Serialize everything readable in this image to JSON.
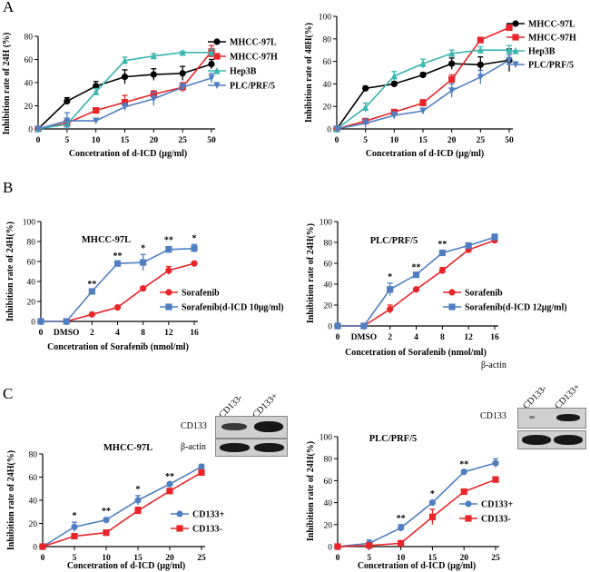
{
  "panels": {
    "A": "A",
    "B": "B",
    "C": "C"
  },
  "chart_data": [
    {
      "id": "A1",
      "type": "line",
      "title": "",
      "xlabel": "Concetration of d-ICD (μg/ml)",
      "ylabel": "Inhibition rate of 24H (%)",
      "categories": [
        "0",
        "5",
        "10",
        "15",
        "20",
        "25",
        "50"
      ],
      "ylim": [
        0,
        80
      ],
      "yticks": [
        0,
        20,
        40,
        60,
        80
      ],
      "series": [
        {
          "name": "MHCC-97L",
          "color": "#000000",
          "marker": "circle",
          "values": [
            0,
            24,
            37,
            45,
            47,
            48,
            56
          ],
          "err": [
            0,
            3,
            4,
            6,
            5,
            6,
            4
          ]
        },
        {
          "name": "MHCC-97H",
          "color": "#e8262a",
          "marker": "square",
          "values": [
            0,
            5,
            16,
            23,
            30,
            36,
            67
          ],
          "err": [
            0,
            3,
            2,
            6,
            3,
            4,
            5
          ]
        },
        {
          "name": "Hep3B",
          "color": "#3ab5b0",
          "marker": "triangle",
          "values": [
            0,
            4,
            32,
            59,
            63,
            66,
            66
          ],
          "err": [
            0,
            2,
            3,
            3,
            2,
            1,
            3
          ]
        },
        {
          "name": "PLC/PRF/5",
          "color": "#4f7fc1",
          "marker": "triangle-down",
          "values": [
            0,
            7,
            7,
            19,
            26,
            36,
            44
          ],
          "err": [
            0,
            7,
            2,
            3,
            6,
            3,
            4
          ]
        }
      ]
    },
    {
      "id": "A2",
      "type": "line",
      "title": "",
      "xlabel": "Concetration of d-ICD (μg/ml)",
      "ylabel": "Inhibition rate of 48H(%)",
      "categories": [
        "0",
        "5",
        "10",
        "15",
        "20",
        "25",
        "50"
      ],
      "ylim": [
        0,
        100
      ],
      "yticks": [
        0,
        20,
        40,
        60,
        80,
        100
      ],
      "series": [
        {
          "name": "MHCC-97L",
          "color": "#000000",
          "marker": "circle",
          "values": [
            0,
            36,
            40,
            48,
            58,
            57,
            61
          ],
          "err": [
            0,
            2,
            2,
            2,
            5,
            7,
            10
          ]
        },
        {
          "name": "MHCC-97H",
          "color": "#e8262a",
          "marker": "square",
          "values": [
            0,
            7,
            15,
            23,
            44,
            79,
            90
          ],
          "err": [
            0,
            2,
            2,
            3,
            4,
            2,
            2
          ]
        },
        {
          "name": "Hep3B",
          "color": "#3ab5b0",
          "marker": "triangle",
          "values": [
            0,
            19,
            47,
            58,
            67,
            70,
            70
          ],
          "err": [
            0,
            4,
            4,
            4,
            3,
            3,
            4
          ]
        },
        {
          "name": "PLC/PRF/5",
          "color": "#4f7fc1",
          "marker": "triangle-down",
          "values": [
            0,
            5,
            12,
            16,
            34,
            46,
            61
          ],
          "err": [
            0,
            4,
            3,
            2,
            6,
            6,
            5
          ]
        }
      ]
    },
    {
      "id": "B1",
      "type": "line",
      "title": "MHCC-97L",
      "xlabel": "Concetration of Sorafenib (nmol/ml)",
      "ylabel": "Inhibition rate of 24H(%)",
      "categories": [
        "0",
        "DMSO",
        "2",
        "4",
        "8",
        "12",
        "16"
      ],
      "ylim": [
        0,
        100
      ],
      "yticks": [
        0,
        20,
        40,
        60,
        80,
        100
      ],
      "series": [
        {
          "name": "Sorafenib",
          "color": "#e8262a",
          "marker": "circle",
          "values": [
            0,
            0,
            7,
            14,
            33,
            51,
            58
          ],
          "err": [
            0,
            0,
            1,
            1,
            2,
            4,
            1
          ]
        },
        {
          "name": "Sorafenib(d-ICD 10μg/ml)",
          "color": "#4f7fc1",
          "marker": "square",
          "values": [
            0,
            0,
            30,
            58,
            59,
            72,
            73
          ],
          "err": [
            0,
            0,
            1,
            1,
            8,
            3,
            4
          ]
        }
      ],
      "significance": [
        "",
        "",
        "**",
        "**",
        "*",
        "**",
        "*"
      ]
    },
    {
      "id": "B2",
      "type": "line",
      "title": "PLC/PRF/5",
      "xlabel": "Concetration of Sorafenib (nmol/ml)",
      "ylabel": "Inhibition rate of 24H(%)",
      "categories": [
        "0",
        "DMSO",
        "2",
        "4",
        "8",
        "12",
        "16"
      ],
      "ylim": [
        0,
        100
      ],
      "yticks": [
        0,
        20,
        40,
        60,
        80,
        100
      ],
      "series": [
        {
          "name": "Sorafenib",
          "color": "#e8262a",
          "marker": "circle",
          "values": [
            0,
            0,
            16,
            35,
            53,
            73,
            82
          ],
          "err": [
            0,
            0,
            4,
            1,
            3,
            3,
            2
          ]
        },
        {
          "name": "Sorafenib(d-ICD 12μg/ml)",
          "color": "#4f7fc1",
          "marker": "square",
          "values": [
            0,
            0,
            35,
            49,
            70,
            77,
            85
          ],
          "err": [
            0,
            0,
            6,
            1,
            2,
            2,
            3
          ]
        }
      ],
      "significance": [
        "",
        "",
        "*",
        "**",
        "**",
        "",
        ""
      ]
    },
    {
      "id": "C1",
      "type": "line",
      "title": "MHCC-97L",
      "xlabel": "Concetration of d-ICD (μg/ml)",
      "ylabel": "Inhibition rate of 24H(%)",
      "categories": [
        "0",
        "5",
        "10",
        "15",
        "20",
        "25"
      ],
      "ylim": [
        0,
        80
      ],
      "yticks": [
        0,
        20,
        40,
        60,
        80
      ],
      "series": [
        {
          "name": "CD133+",
          "color": "#4f7fc1",
          "marker": "circle",
          "values": [
            0,
            17,
            23,
            40,
            54,
            69
          ],
          "err": [
            0,
            4,
            2,
            4,
            1,
            2
          ]
        },
        {
          "name": "CD133-",
          "color": "#e8262a",
          "marker": "square",
          "values": [
            0,
            9,
            12,
            31,
            48,
            64
          ],
          "err": [
            0,
            1,
            1,
            3,
            1,
            1
          ]
        }
      ],
      "significance": [
        "",
        "*",
        "**",
        "*",
        "**",
        "**"
      ]
    },
    {
      "id": "C2",
      "type": "line",
      "title": "PLC/PRF/5",
      "xlabel": "Concetration of d-ICD (μg/ml)",
      "ylabel": "Inhibition rate of 24H(%)",
      "categories": [
        "0",
        "5",
        "10",
        "15",
        "20",
        "25"
      ],
      "ylim": [
        0,
        100
      ],
      "yticks": [
        0,
        20,
        40,
        60,
        80,
        100
      ],
      "series": [
        {
          "name": "CD133+",
          "color": "#4f7fc1",
          "marker": "circle",
          "values": [
            0,
            3,
            17,
            40,
            68,
            76
          ],
          "err": [
            0,
            3,
            3,
            2,
            1,
            4
          ]
        },
        {
          "name": "CD133-",
          "color": "#e8262a",
          "marker": "square",
          "values": [
            0,
            1,
            3,
            27,
            50,
            61
          ],
          "err": [
            0,
            2,
            1,
            7,
            1,
            1
          ]
        }
      ],
      "significance": [
        "",
        "",
        "**",
        "*",
        "**",
        "*"
      ]
    }
  ],
  "blots": {
    "left": {
      "lanes": [
        "CD133-",
        "CD133+"
      ],
      "rows": [
        "CD133",
        "β-actin"
      ]
    },
    "right": {
      "lanes": [
        "CD133-",
        "CD133+"
      ],
      "rows": [
        "CD133",
        "β-actin"
      ]
    }
  }
}
